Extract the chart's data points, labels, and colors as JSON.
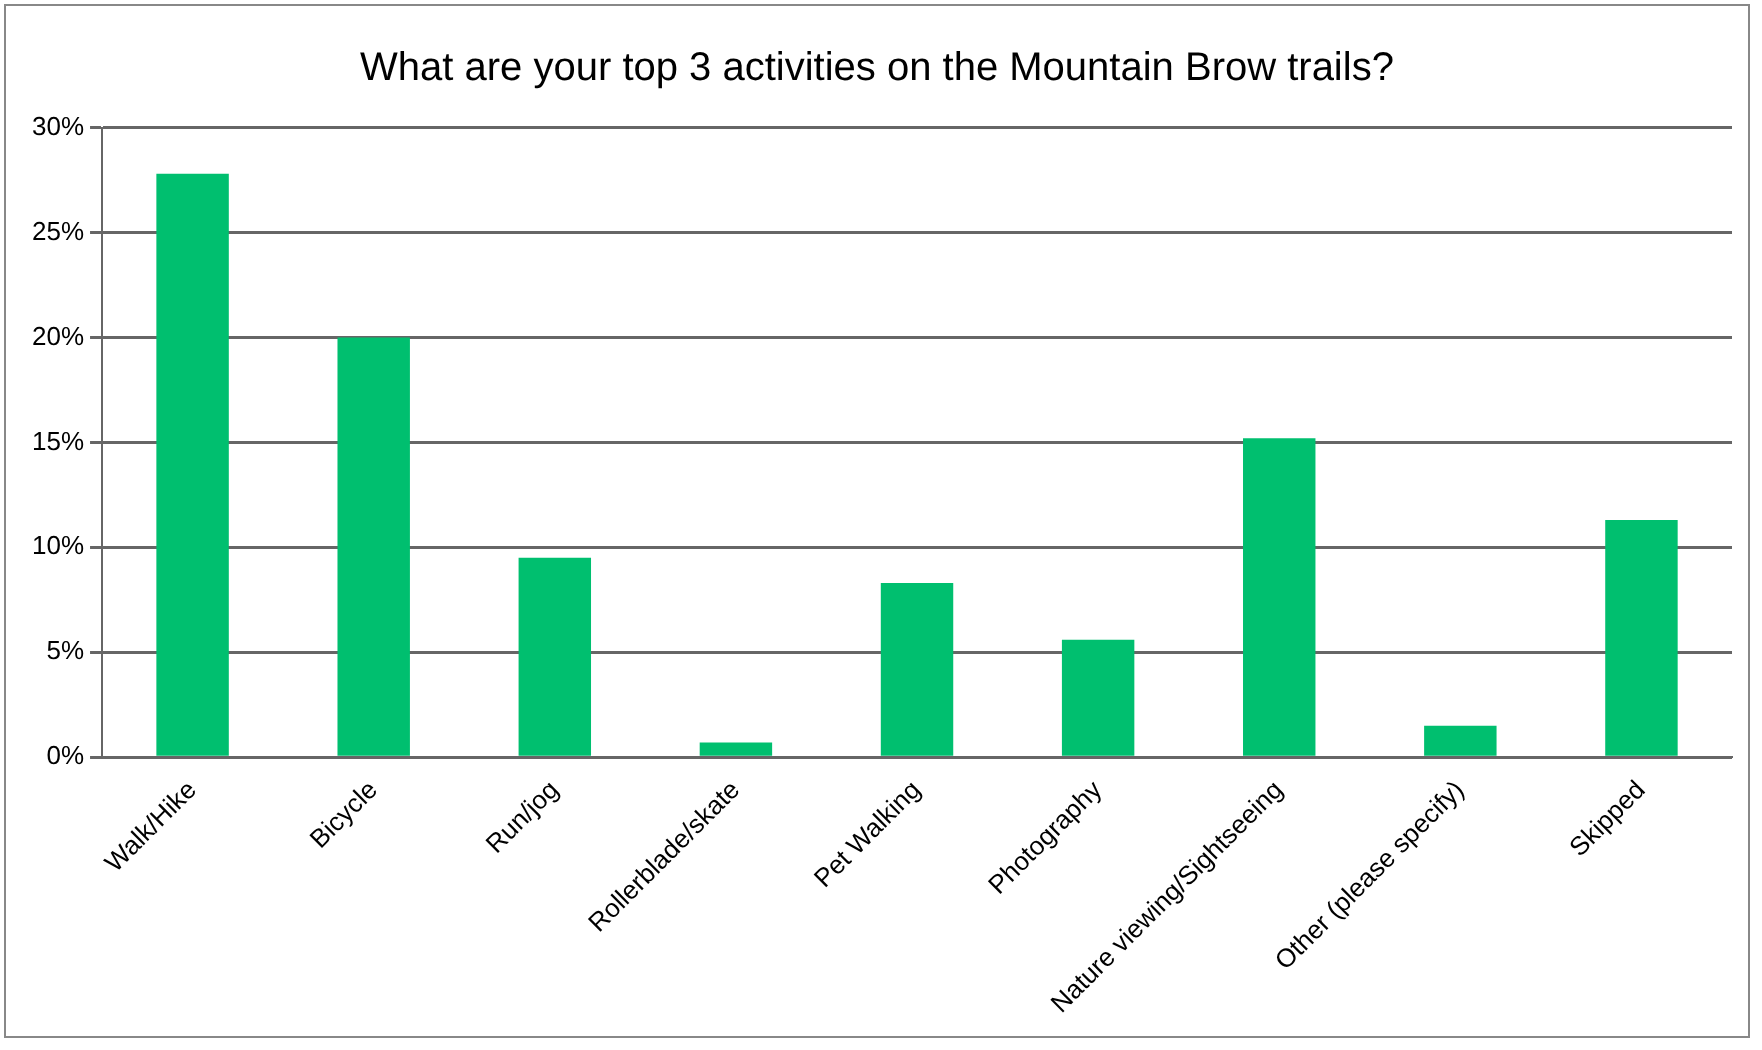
{
  "chart_data": {
    "type": "bar",
    "title": "What are your top 3 activities on the Mountain Brow trails?",
    "categories": [
      "Walk/Hike",
      "Bicycle",
      "Run/jog",
      "Rollerblade/skate",
      "Pet Walking",
      "Photography",
      "Nature viewing/Sightseeing",
      "Other (please specify)",
      "Skipped"
    ],
    "values": [
      27.8,
      20,
      9.5,
      0.7,
      8.3,
      5.6,
      15.2,
      1.5,
      11.3
    ],
    "color": "#00bf6f",
    "ylim": [
      0,
      30
    ],
    "yticks": [
      {
        "value": 0,
        "label": "0%"
      },
      {
        "value": 5,
        "label": "5%"
      },
      {
        "value": 10,
        "label": "10%"
      },
      {
        "value": 15,
        "label": "15%"
      },
      {
        "value": 20,
        "label": "20%"
      },
      {
        "value": 25,
        "label": "25%"
      },
      {
        "value": 30,
        "label": "30%"
      }
    ],
    "grid": "y",
    "legend": false
  }
}
